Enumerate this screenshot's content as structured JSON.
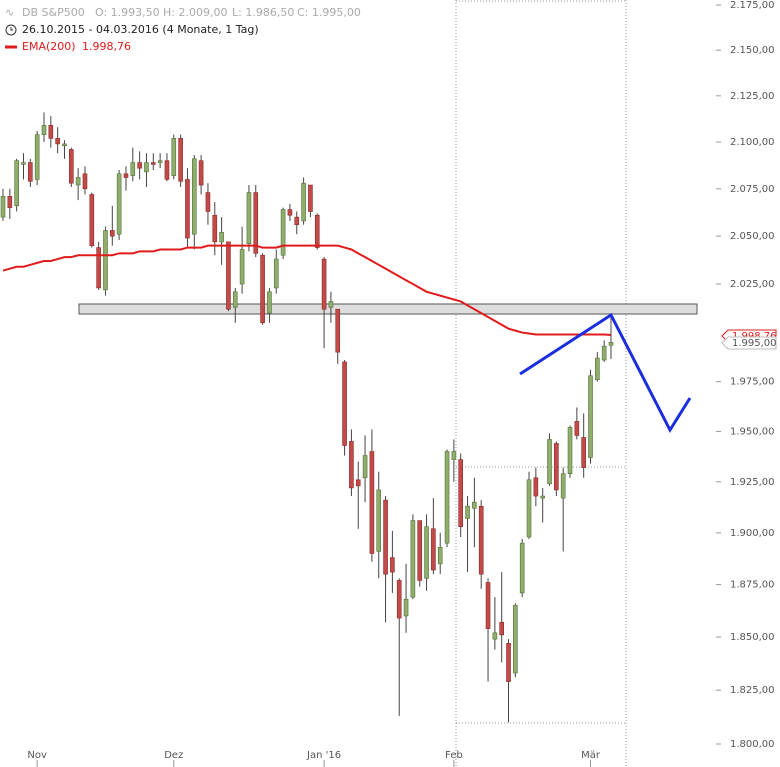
{
  "chart_data": {
    "type": "candlestick",
    "header": {
      "symbol": "DB S&P500",
      "ohlc": [
        "O: 1.993,50",
        "H: 2.009,00",
        "L: 1.986,50",
        "C: 1.995,00"
      ],
      "range": "26.10.2015 - 04.03.2016 (4 Monate, 1 Tag)",
      "ema_label": "EMA(200)",
      "ema_value": "1.998,76"
    },
    "last_price_label": "1.995,00",
    "log_scale": true,
    "ylim": [
      1800,
      2175
    ],
    "yticks": [
      {
        "value": 1800,
        "label": "1.800,00"
      },
      {
        "value": 1825,
        "label": "1.825,00"
      },
      {
        "value": 1850,
        "label": "1.850,00"
      },
      {
        "value": 1875,
        "label": "1.875,00"
      },
      {
        "value": 1900,
        "label": "1.900,00"
      },
      {
        "value": 1925,
        "label": "1.925,00"
      },
      {
        "value": 1950,
        "label": "1.950,00"
      },
      {
        "value": 1975,
        "label": "1.975,00"
      },
      {
        "value": 2025,
        "label": "2.025,00"
      },
      {
        "value": 2050,
        "label": "2.050,00"
      },
      {
        "value": 2075,
        "label": "2.075,00"
      },
      {
        "value": 2100,
        "label": "2.100,00"
      },
      {
        "value": 2125,
        "label": "2.125,00"
      },
      {
        "value": 2150,
        "label": "2.150,00"
      },
      {
        "value": 2175,
        "label": "2.175,00"
      }
    ],
    "categories": [
      null,
      null,
      null,
      null,
      null,
      "Nov",
      null,
      null,
      null,
      null,
      null,
      null,
      null,
      null,
      null,
      null,
      null,
      null,
      null,
      null,
      null,
      null,
      null,
      null,
      null,
      "Dez",
      null,
      null,
      null,
      null,
      null,
      null,
      null,
      null,
      null,
      null,
      null,
      null,
      null,
      null,
      null,
      null,
      null,
      null,
      null,
      null,
      null,
      "Jan '16",
      null,
      null,
      null,
      null,
      null,
      null,
      null,
      null,
      null,
      null,
      null,
      null,
      null,
      null,
      null,
      null,
      null,
      null,
      "Feb",
      null,
      null,
      null,
      null,
      null,
      null,
      null,
      null,
      null,
      null,
      null,
      null,
      null,
      null,
      null,
      null,
      null,
      null,
      null,
      "Mär",
      null,
      null,
      null
    ],
    "up_color": "#8fae6c",
    "down_color": "#c24a48",
    "open": [
      2060,
      2071,
      2066,
      2088,
      2089,
      2080,
      2104,
      2109,
      2102,
      2098,
      2096,
      2077,
      2083,
      2072,
      2044,
      2022,
      2053,
      2051,
      2083,
      2082,
      2089,
      2084,
      2089,
      2089,
      2090,
      2082,
      2102,
      2080,
      2051,
      2090,
      2073,
      2061,
      2047,
      2047,
      2013,
      2025,
      2046,
      2073,
      2040,
      2010,
      2023,
      2040,
      2064,
      2060,
      2058,
      2077,
      2061,
      2038,
      2013,
      2012,
      1985,
      1945,
      1926,
      1927,
      1940,
      1891,
      1916,
      1888,
      1877,
      1860,
      1869,
      1906,
      1878,
      1902,
      1885,
      1895,
      1936,
      1936,
      1907,
      1912,
      1913,
      1876,
      1849,
      1857,
      1847,
      1833,
      1871,
      1898,
      1927,
      1917,
      1924,
      1944,
      1917,
      1929,
      1955,
      1947,
      1937,
      1976,
      1986,
      1993.5
    ],
    "high": [
      2075,
      2075,
      2091,
      2094,
      2091,
      2106,
      2116,
      2114,
      2108,
      2101,
      2097,
      2086,
      2087,
      2073,
      2047,
      2055,
      2066,
      2085,
      2087,
      2097,
      2095,
      2094,
      2094,
      2094,
      2094,
      2104,
      2104,
      2086,
      2093,
      2093,
      2078,
      2068,
      2060,
      2047,
      2023,
      2055,
      2077,
      2077,
      2041,
      2023,
      2043,
      2065,
      2067,
      2063,
      2081,
      2077,
      2062,
      2039,
      2021,
      2012,
      1986,
      1951,
      1935,
      1948,
      1951,
      1930,
      1918,
      1901,
      1878,
      1885,
      1909,
      1906,
      1909,
      1917,
      1900,
      1941,
      1946,
      1939,
      1918,
      1927,
      1916,
      1878,
      1869,
      1881,
      1849,
      1866,
      1897,
      1930,
      1932,
      1922,
      1949,
      1945,
      1932,
      1953,
      1962,
      1959,
      1981,
      1990,
      1996,
      2009
    ],
    "low": [
      2058,
      2059,
      2063,
      2080,
      2076,
      2077,
      2100,
      2097,
      2094,
      2091,
      2076,
      2069,
      2072,
      2044,
      2022,
      2019,
      2045,
      2048,
      2074,
      2079,
      2080,
      2076,
      2085,
      2086,
      2079,
      2080,
      2076,
      2044,
      2043,
      2072,
      2056,
      2040,
      2035,
      2011,
      2005,
      2020,
      2042,
      2039,
      2004,
      2005,
      2020,
      2038,
      2058,
      2051,
      2056,
      2060,
      2043,
      1992,
      2005,
      1984,
      1938,
      1918,
      1902,
      1915,
      1886,
      1878,
      1857,
      1871,
      1813,
      1852,
      1868,
      1874,
      1872,
      1880,
      1880,
      1893,
      1925,
      1898,
      1881,
      1893,
      1873,
      1829,
      1844,
      1838,
      1810,
      1831,
      1869,
      1897,
      1913,
      1905,
      1923,
      1918,
      1891,
      1927,
      1946,
      1927,
      1934,
      1975,
      1985,
      1986.5
    ],
    "close": [
      2071,
      2065,
      2090,
      2089,
      2079,
      2104,
      2109,
      2102,
      2099,
      2099,
      2078,
      2081,
      2075,
      2045,
      2023,
      2053,
      2050,
      2083,
      2081,
      2089,
      2086,
      2089,
      2088,
      2090,
      2080,
      2102,
      2079,
      2049,
      2091,
      2077,
      2063,
      2047,
      2052,
      2012,
      2021,
      2043,
      2073,
      2041,
      2005,
      2021,
      2038,
      2064,
      2061,
      2056,
      2078,
      2063,
      2044,
      2012,
      2016,
      1990,
      1943,
      1922,
      1923,
      1938,
      1890,
      1921,
      1880,
      1881,
      1859,
      1868,
      1906,
      1877,
      1903,
      1882,
      1893,
      1940,
      1940,
      1903,
      1913,
      1915,
      1880,
      1854,
      1852,
      1851,
      1829,
      1865,
      1895,
      1926,
      1918,
      1918,
      1946,
      1921,
      1929,
      1952,
      1948,
      1932,
      1978,
      1987,
      1993,
      1995
    ],
    "ema": {
      "name": "EMA(200)",
      "color": "#e01b1b",
      "values": [
        2032,
        2033,
        2034,
        2034,
        2035,
        2036,
        2037,
        2037,
        2038,
        2039,
        2039,
        2040,
        2040,
        2040,
        2040,
        2040,
        2040,
        2041,
        2041,
        2041,
        2042,
        2042,
        2042,
        2043,
        2043,
        2043,
        2043,
        2044,
        2044,
        2044,
        2045,
        2045,
        2045,
        2045,
        2045,
        2045,
        2045,
        2045,
        2044,
        2044,
        2044,
        2045,
        2045,
        2045,
        2045,
        2045,
        2045,
        2045,
        2045,
        2045,
        2044,
        2043,
        2041,
        2039,
        2037,
        2035,
        2033,
        2031,
        2029,
        2027,
        2025,
        2023,
        2021,
        2020,
        2019,
        2018,
        2017,
        2016,
        2014,
        2012,
        2010,
        2008,
        2006,
        2004,
        2002,
        2001,
        2000,
        1999.5,
        1999,
        1999,
        1999,
        1999,
        1999,
        1999,
        1999,
        1999,
        1999,
        1999,
        1999,
        1998.76
      ]
    }
  }
}
